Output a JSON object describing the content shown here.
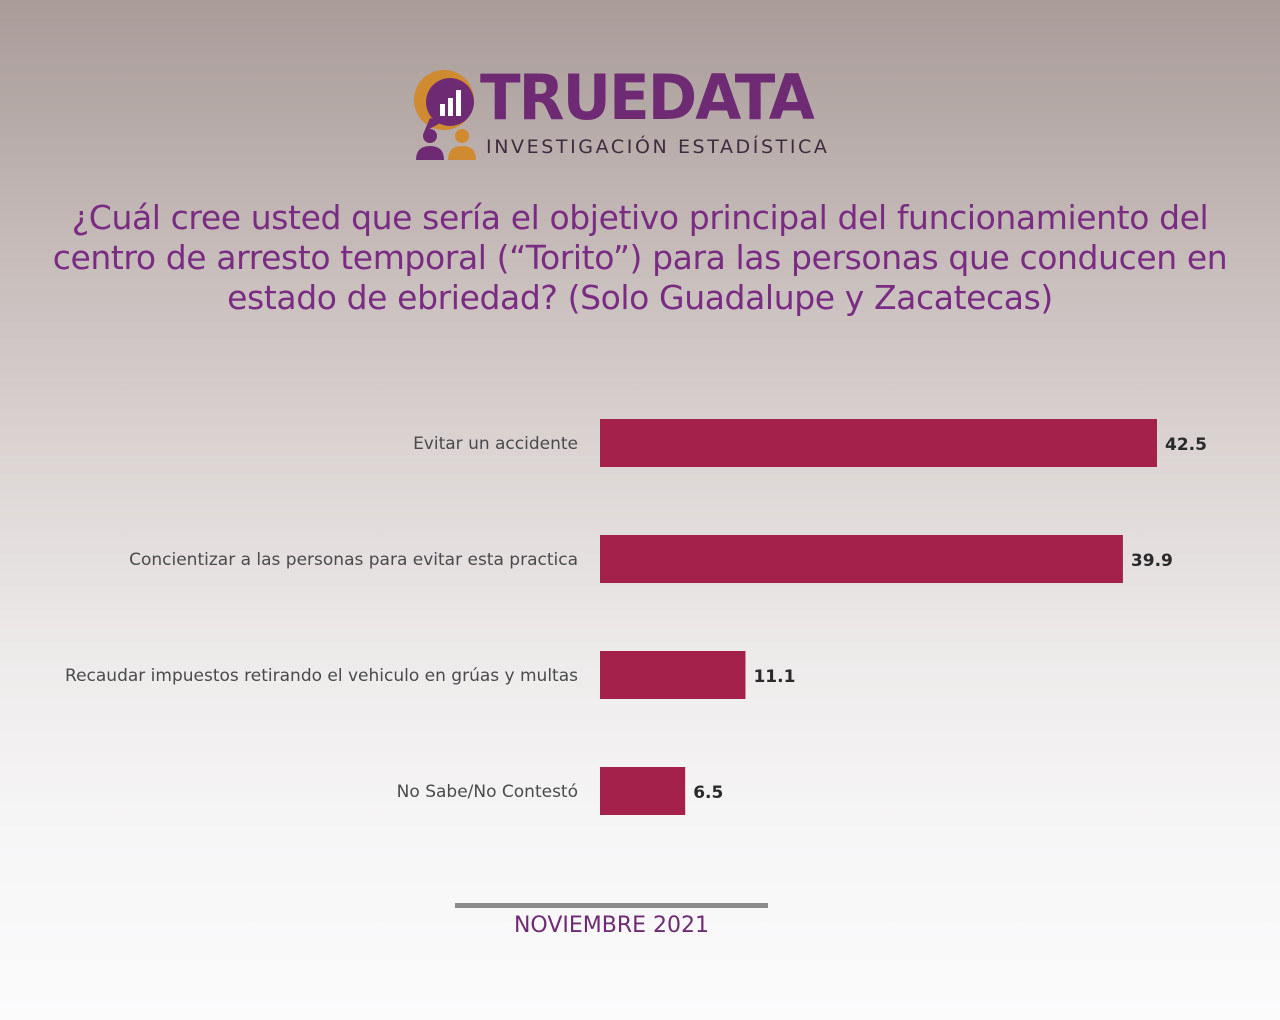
{
  "logo": {
    "title": "TRUEDATA",
    "subtitle": "INVESTIGACIÓN  ESTADÍSTICA"
  },
  "question": "¿Cuál cree usted que sería el objetivo principal del funcionamiento del centro de arresto temporal (“Torito”) para las personas que conducen en estado de ebriedad? (Solo Guadalupe y Zacatecas)",
  "footer": "NOVIEMBRE 2021",
  "colors": {
    "bar": "#a3214a",
    "title": "#7a2b82",
    "logo_purple": "#6e2b73",
    "logo_orange": "#d08a30",
    "rule": "#8c8c8f"
  },
  "chart_data": {
    "type": "bar",
    "orientation": "horizontal",
    "categories": [
      "Evitar un accidente",
      "Concientizar a las personas para evitar esta practica",
      "Recaudar impuestos retirando el vehiculo en grúas y multas",
      "No Sabe/No Contestó"
    ],
    "values": [
      42.5,
      39.9,
      11.1,
      6.5
    ],
    "value_labels": [
      "42.5",
      "39.9",
      "11.1",
      "6.5"
    ],
    "title": "",
    "xlabel": "",
    "ylabel": "",
    "xlim": [
      0,
      42.5
    ],
    "grid": false,
    "legend": "none"
  }
}
